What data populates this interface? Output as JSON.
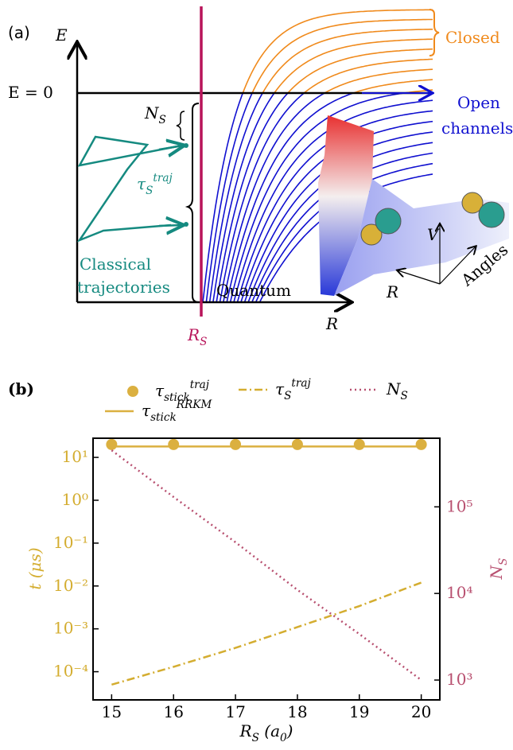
{
  "panel_a": {
    "label": "(a)",
    "energy_axis": "E",
    "zero_label": "E = 0",
    "density_label": "N_S",
    "time_label": "τ_S^traj",
    "classical_label": [
      "Classical",
      "trajectories"
    ],
    "quantum_label": "Quantum",
    "r_axis": "R",
    "rs_label": "R_S",
    "closed_label": "Closed",
    "open_label": [
      "Open",
      "channels"
    ],
    "surface_axes": {
      "v": "V",
      "r": "R",
      "angles": "Angles"
    }
  },
  "chart_data": {
    "type": "line",
    "panel_label": "(b)",
    "xlabel": "R_S (a_0)",
    "ylabel": "t (μs)",
    "y2label": "N_S",
    "x": [
      15,
      16,
      17,
      18,
      19,
      20
    ],
    "xlim": [
      14.7,
      20.3
    ],
    "xticks": [
      15,
      16,
      17,
      18,
      19,
      20
    ],
    "ylim": [
      2.2e-05,
      28
    ],
    "log_y": true,
    "yticks": [
      {
        "value": 10,
        "label": "10¹"
      },
      {
        "value": 1,
        "label": "10⁰"
      },
      {
        "value": 0.1,
        "label": "10⁻¹"
      },
      {
        "value": 0.01,
        "label": "10⁻²"
      },
      {
        "value": 0.001,
        "label": "10⁻³"
      },
      {
        "value": 0.0001,
        "label": "10⁻⁴"
      }
    ],
    "y2lim": [
      590,
      620000
    ],
    "log_y2": true,
    "y2ticks": [
      {
        "value": 1000,
        "label": "10³"
      },
      {
        "value": 10000,
        "label": "10⁴"
      },
      {
        "value": 100000,
        "label": "10⁵"
      }
    ],
    "series": [
      {
        "name": "τ_stick^traj",
        "color": "#dbb040",
        "style": "marker",
        "values": [
          20,
          20,
          20,
          20,
          20,
          20
        ]
      },
      {
        "name": "τ_stick^RRKM",
        "color": "#dbb040",
        "style": "solid",
        "values": [
          18,
          18,
          18,
          18,
          18,
          18
        ]
      },
      {
        "name": "τ_S^traj",
        "color": "#d4ad30",
        "style": "dashdot",
        "values": [
          5e-05,
          0.00013,
          0.00036,
          0.0011,
          0.0034,
          0.012
        ]
      },
      {
        "name": "N_S",
        "color": "#b85070",
        "style": "dotted",
        "axis": "y2",
        "values": [
          450000,
          130000,
          39000,
          11000,
          3400,
          1000
        ]
      }
    ]
  }
}
